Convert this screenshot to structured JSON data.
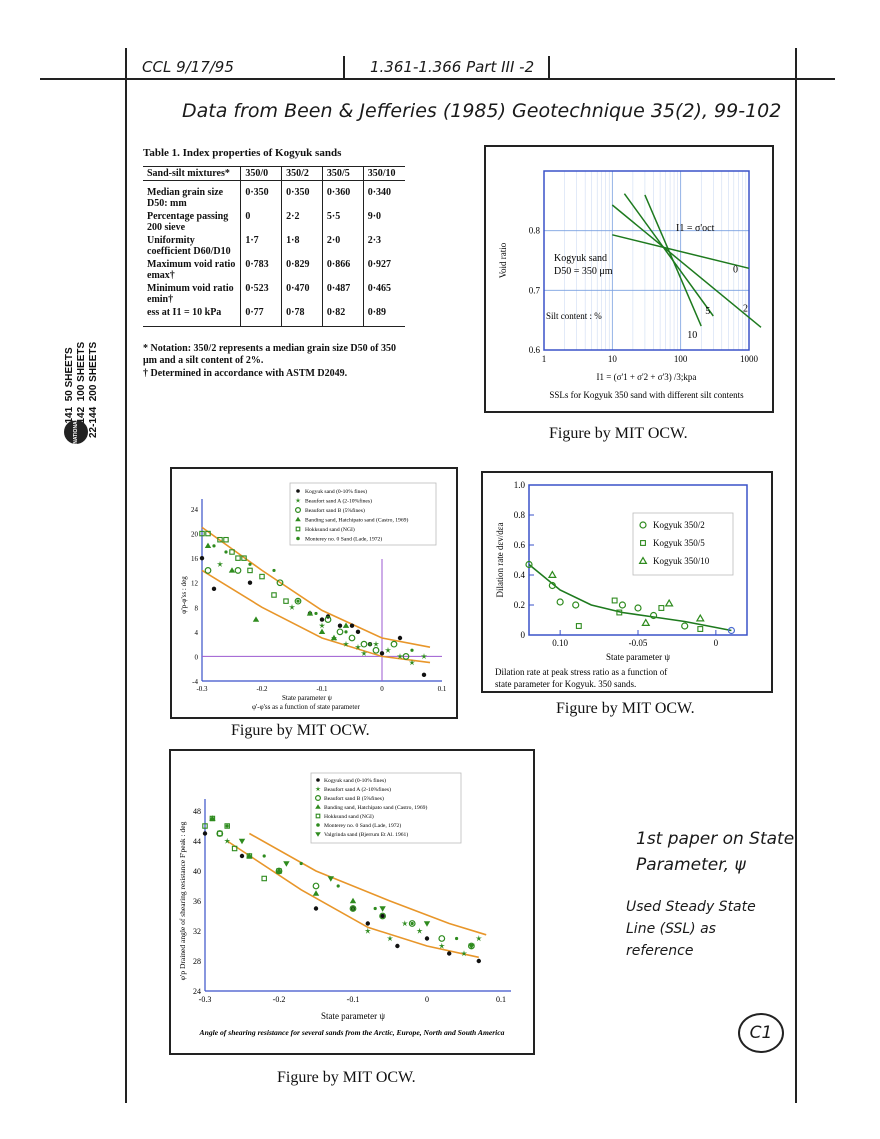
{
  "header": {
    "left_note": "CCL 9/17/95",
    "center_note": "1.361-1.366  Part III -2",
    "title_note": "Data from Been & Jefferies (1985) Geotechnique 35(2), 99-102"
  },
  "spine": {
    "codes": [
      "22-141",
      "22-142",
      "22-144"
    ],
    "sheets": [
      "50 SHEETS",
      "100 SHEETS",
      "200 SHEETS"
    ],
    "brand": "NATIONAL"
  },
  "table1": {
    "title": "Table 1.   Index properties of Kogyuk sands",
    "columns": [
      "Sand-silt mixtures*",
      "350/0",
      "350/2",
      "350/5",
      "350/10"
    ],
    "rows": [
      {
        "label": "Median grain size D50: mm",
        "values": [
          "0·350",
          "0·350",
          "0·360",
          "0·340"
        ]
      },
      {
        "label": "Percentage passing 200 sieve",
        "values": [
          "0",
          "2·2",
          "5·5",
          "9·0"
        ]
      },
      {
        "label": "Uniformity coefficient D60/D10",
        "values": [
          "1·7",
          "1·8",
          "2·0",
          "2·3"
        ]
      },
      {
        "label": "Maximum void ratio emax†",
        "values": [
          "0·783",
          "0·829",
          "0·866",
          "0·927"
        ]
      },
      {
        "label": "Minimum void ratio emin†",
        "values": [
          "0·523",
          "0·470",
          "0·487",
          "0·465"
        ]
      },
      {
        "label": "ess at I1 = 10 kPa",
        "values": [
          "0·77",
          "0·78",
          "0·82",
          "0·89"
        ]
      }
    ],
    "note1": "* Notation: 350/2 represents a median grain size D50 of 350 μm and a silt content of 2%.",
    "note2": "† Determined in accordance with ASTM D2049."
  },
  "captions": {
    "fig1": "Figure by MIT OCW.",
    "fig2": "Figure by MIT OCW.",
    "fig3": "Figure by MIT OCW.",
    "fig4": "Figure by MIT OCW."
  },
  "margin_notes": {
    "note1": "1st paper on State Parameter, ψ",
    "note2": "Used Steady State Line (SSL) as reference",
    "page_id": "C1"
  },
  "chart_data": [
    {
      "type": "line",
      "title": "SSLs for Kogyuk 350 sand with different silt contents",
      "xlabel": "I1 = (σ'1 + σ'2 + σ'3) /3;kpa",
      "ylabel": "Void ratio",
      "xscale": "log",
      "xlim": [
        1,
        1000
      ],
      "ylim": [
        0.6,
        0.9
      ],
      "xticks": [
        "1",
        "10",
        "100",
        "1000"
      ],
      "yticks": [
        "0.6",
        "0.7",
        "0.8"
      ],
      "annotations": [
        "Kogyuk sand",
        "D50 = 350 μm",
        "I1 = σ'oct",
        "Silt content : %"
      ],
      "series": [
        {
          "name": "0",
          "x": [
            10,
            1000
          ],
          "y": [
            0.793,
            0.737
          ]
        },
        {
          "name": "2",
          "x": [
            10,
            1500
          ],
          "y": [
            0.843,
            0.638
          ]
        },
        {
          "name": "5",
          "x": [
            15,
            300
          ],
          "y": [
            0.862,
            0.657
          ]
        },
        {
          "name": "10",
          "x": [
            30,
            200
          ],
          "y": [
            0.86,
            0.64
          ]
        }
      ]
    },
    {
      "type": "scatter",
      "title": "φ'-φ'ss as a function of state parameter",
      "xlabel": "State parameter ψ",
      "ylabel": "φ'p-φ'ss : deg",
      "xlim": [
        -0.3,
        0.1
      ],
      "ylim": [
        -4,
        24
      ],
      "xticks": [
        "-0.3",
        "-0.2",
        "-0.1",
        "0",
        "0.1"
      ],
      "yticks": [
        "-4",
        "0",
        "4",
        "8",
        "12",
        "16",
        "20",
        "24"
      ],
      "legend": [
        "Kogyuk sand (0-10% fines)",
        "Beaufort sand A (2-10%fines)",
        "Beaufort sand B (5%fines)",
        "Banding sand, Hatchipato sand (Castro, 1969)",
        "Hokksund sand (NGI)",
        "Monterey no. 0 Sand (Lade, 1972)"
      ],
      "bounds": [
        {
          "x": [
            -0.3,
            -0.2,
            -0.1,
            0.0,
            0.08
          ],
          "y": [
            21,
            14,
            7.5,
            3,
            1.5
          ]
        },
        {
          "x": [
            -0.3,
            -0.2,
            -0.1,
            0.0,
            0.08
          ],
          "y": [
            14,
            8,
            3,
            0,
            -1
          ]
        }
      ],
      "series": [
        {
          "name": "Kogyuk sand (0-10% fines)",
          "x": [
            -0.3,
            -0.28,
            -0.22,
            -0.12,
            -0.1,
            -0.09,
            -0.07,
            -0.05,
            -0.04,
            -0.02,
            0.0,
            0.03,
            0.07
          ],
          "y": [
            16,
            11,
            12,
            7,
            6,
            6.5,
            5,
            5,
            4,
            2,
            0.5,
            3,
            -3
          ]
        },
        {
          "name": "Beaufort sand A (2-10%fines)",
          "x": [
            -0.27,
            -0.15,
            -0.1,
            -0.08,
            -0.06,
            -0.04,
            -0.03,
            -0.01,
            0.01,
            0.03,
            0.05,
            0.07
          ],
          "y": [
            15,
            8,
            5,
            3,
            2,
            1.5,
            0.5,
            2,
            1,
            0,
            -1,
            0
          ]
        },
        {
          "name": "Beaufort sand B (5%fines)",
          "x": [
            -0.29,
            -0.24,
            -0.17,
            -0.14,
            -0.09,
            -0.07,
            -0.05,
            -0.03,
            -0.01,
            0.02,
            0.04
          ],
          "y": [
            14,
            14,
            12,
            9,
            6,
            4,
            3,
            2,
            1,
            2,
            0
          ]
        },
        {
          "name": "Banding sand, Hatchipato sand (Castro, 1969)",
          "x": [
            -0.29,
            -0.25,
            -0.21,
            -0.12,
            -0.1,
            -0.08,
            -0.06
          ],
          "y": [
            18,
            14,
            6,
            7,
            4,
            3,
            5
          ]
        },
        {
          "name": "Hokksund sand (NGI)",
          "x": [
            -0.3,
            -0.29,
            -0.27,
            -0.26,
            -0.25,
            -0.24,
            -0.23,
            -0.22,
            -0.2,
            -0.18,
            -0.16
          ],
          "y": [
            20,
            20,
            19,
            19,
            17,
            16,
            16,
            14,
            13,
            10,
            9
          ]
        },
        {
          "name": "Monterey no. 0 Sand (Lade, 1972)",
          "x": [
            -0.28,
            -0.26,
            -0.22,
            -0.18,
            -0.14,
            -0.11,
            -0.06,
            -0.02,
            0.05
          ],
          "y": [
            18,
            17,
            15,
            14,
            9,
            7,
            4,
            2,
            1
          ]
        }
      ]
    },
    {
      "type": "scatter",
      "title": "Dilation rate at peak stress ratio as a function of state parameter for Kogyuk. 350 sands.",
      "xlabel": "State parameter ψ",
      "ylabel": "Dilation rate dεv/dεa",
      "xlim": [
        -0.12,
        0.02
      ],
      "ylim": [
        0,
        1.0
      ],
      "xticks": [
        "0.10",
        "-0.05",
        "0"
      ],
      "yticks": [
        "0",
        "0.2",
        "0.4",
        "0.6",
        "0.8",
        "1.0"
      ],
      "legend": [
        "Kogyuk 350/2",
        "Kogyuk 350/5",
        "Kogyuk 350/10"
      ],
      "fit": {
        "x": [
          -0.12,
          -0.1,
          -0.08,
          -0.06,
          -0.04,
          -0.02,
          0.0,
          0.01
        ],
        "y": [
          0.47,
          0.3,
          0.2,
          0.15,
          0.12,
          0.09,
          0.05,
          0.03
        ]
      },
      "series": [
        {
          "name": "Kogyuk 350/2",
          "x": [
            -0.12,
            -0.105,
            -0.1,
            -0.09,
            -0.06,
            -0.05,
            -0.04,
            -0.02,
            0.01
          ],
          "y": [
            0.47,
            0.33,
            0.22,
            0.2,
            0.2,
            0.18,
            0.13,
            0.06,
            0.03
          ]
        },
        {
          "name": "Kogyuk 350/5",
          "x": [
            -0.088,
            -0.065,
            -0.062,
            -0.035,
            -0.01
          ],
          "y": [
            0.06,
            0.23,
            0.15,
            0.18,
            0.04
          ]
        },
        {
          "name": "Kogyuk 350/10",
          "x": [
            -0.105,
            -0.045,
            -0.03,
            -0.01
          ],
          "y": [
            0.4,
            0.08,
            0.21,
            0.11
          ]
        }
      ]
    },
    {
      "type": "scatter",
      "title": "Angle of shearing resistance for several sands from the Arctic, Europe, North and South America",
      "xlabel": "State parameter ψ",
      "ylabel": "φ'p  Drained angle of shearing resistance F'peak : deg",
      "xlim": [
        -0.3,
        0.1
      ],
      "ylim": [
        24,
        48
      ],
      "xticks": [
        "-0.3",
        "-0.2",
        "-0.1",
        "0",
        "0.1"
      ],
      "yticks": [
        "24",
        "28",
        "32",
        "36",
        "40",
        "44",
        "48"
      ],
      "legend": [
        "Kogyuk sand (0-10% fines)",
        "Beaufort sand A (2-10%fines)",
        "Beaufort sand B (5%fines)",
        "Banding sand, Hatchipato sand (Castro, 1969)",
        "Hokksund sand (NGI)",
        "Monterey no. 0 Sand (Lade, 1972)",
        "Valgrinda sand (Bjerrum Et Al. 1961)"
      ],
      "bounds": [
        {
          "x": [
            -0.24,
            -0.15,
            -0.05,
            0.03,
            0.08
          ],
          "y": [
            45,
            40,
            36,
            33,
            31.5
          ]
        },
        {
          "x": [
            -0.27,
            -0.17,
            -0.08,
            0.0,
            0.07
          ],
          "y": [
            44,
            37.5,
            32.5,
            30,
            28.5
          ]
        }
      ],
      "series": [
        {
          "name": "Kogyuk sand (0-10% fines)",
          "x": [
            -0.3,
            -0.25,
            -0.15,
            -0.1,
            -0.08,
            -0.06,
            -0.04,
            0.0,
            0.03,
            0.07
          ],
          "y": [
            45,
            42,
            35,
            35,
            33,
            34,
            30,
            31,
            29,
            28
          ]
        },
        {
          "name": "Beaufort sand A (2-10%fines)",
          "x": [
            -0.27,
            -0.1,
            -0.08,
            -0.05,
            -0.03,
            -0.01,
            0.02,
            0.05,
            0.07
          ],
          "y": [
            44,
            35,
            32,
            31,
            33,
            32,
            30,
            29,
            31
          ]
        },
        {
          "name": "Beaufort sand B (5%fines)",
          "x": [
            -0.28,
            -0.2,
            -0.15,
            -0.1,
            -0.06,
            -0.02,
            0.02,
            0.06
          ],
          "y": [
            45,
            40,
            38,
            35,
            34,
            33,
            31,
            30
          ]
        },
        {
          "name": "Banding sand, Hatchipato sand (Castro, 1969)",
          "x": [
            -0.29,
            -0.24,
            -0.2,
            -0.15,
            -0.1
          ],
          "y": [
            47,
            42,
            40,
            37,
            36
          ]
        },
        {
          "name": "Hokksund sand (NGI)",
          "x": [
            -0.3,
            -0.29,
            -0.28,
            -0.27,
            -0.26,
            -0.24,
            -0.22,
            -0.2
          ],
          "y": [
            46,
            47,
            45,
            46,
            43,
            42,
            39,
            40
          ]
        },
        {
          "name": "Monterey no. 0 Sand (Lade, 1972)",
          "x": [
            -0.27,
            -0.22,
            -0.17,
            -0.12,
            -0.07,
            -0.02,
            0.04
          ],
          "y": [
            46,
            42,
            41,
            38,
            35,
            33,
            31
          ]
        },
        {
          "name": "Valgrinda sand (Bjerrum Et Al. 1961)",
          "x": [
            -0.25,
            -0.19,
            -0.13,
            -0.06,
            0.0,
            0.06
          ],
          "y": [
            44,
            41,
            39,
            35,
            33,
            30
          ]
        }
      ]
    }
  ]
}
